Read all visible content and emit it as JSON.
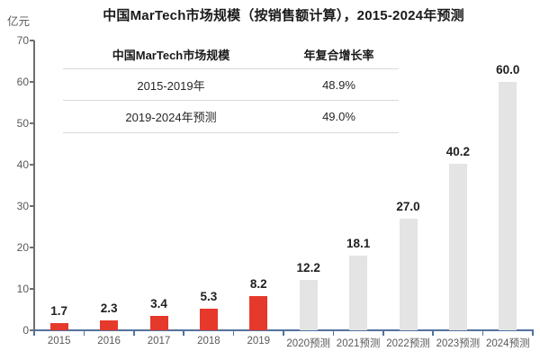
{
  "title": "中国MarTech市场规模（按销售额计算），2015-2024年预测",
  "unit_label": "亿元",
  "cagr_table": {
    "header": [
      "中国MarTech市场规模",
      "年复合增长率"
    ],
    "rows": [
      [
        "2015-2019年",
        "48.9%"
      ],
      [
        "2019-2024年预测",
        "49.0%"
      ]
    ]
  },
  "chart_data": {
    "type": "bar",
    "title": "中国MarTech市场规模（按销售额计算），2015-2024年预测",
    "ylabel": "亿元",
    "xlabel": "",
    "categories": [
      "2015",
      "2016",
      "2017",
      "2018",
      "2019",
      "2020预测",
      "2021预测",
      "2022预测",
      "2023预测",
      "2024预测"
    ],
    "values": [
      1.7,
      2.3,
      3.4,
      5.3,
      8.2,
      12.2,
      18.1,
      27.0,
      40.2,
      60.0
    ],
    "value_labels": [
      "1.7",
      "2.3",
      "3.4",
      "5.3",
      "8.2",
      "12.2",
      "18.1",
      "27.0",
      "40.2",
      "60.0"
    ],
    "actual_count": 5,
    "ylim": [
      0,
      70
    ],
    "yticks": [
      0,
      10,
      20,
      30,
      40,
      50,
      60,
      70
    ],
    "grid": false,
    "legend_position": "none",
    "colors": {
      "actual_bar": "#e5392c",
      "forecast_bar": "#e4e4e4",
      "x_axis": "#54729e",
      "y_axis": "#6e6e6e",
      "tick_text": "#595959",
      "value_text": "#1f1f1f",
      "table_line": "#d9d9d9"
    }
  }
}
